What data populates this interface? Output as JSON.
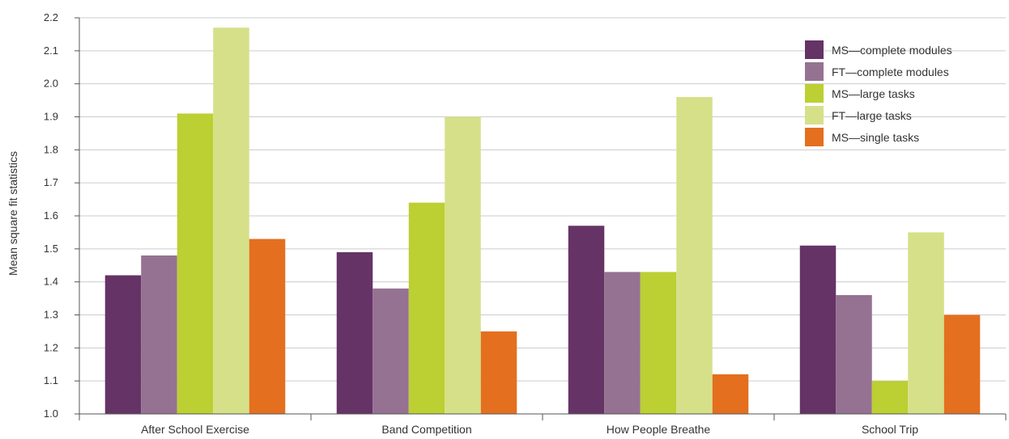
{
  "chart_data": {
    "type": "bar",
    "ylabel": "Mean square fit statistics",
    "xlabel": "",
    "ylim": [
      1.0,
      2.2
    ],
    "yticks": [
      "1.0",
      "1.1",
      "1.2",
      "1.3",
      "1.4",
      "1.5",
      "1.6",
      "1.7",
      "1.8",
      "1.9",
      "2.0",
      "2.1",
      "2.2"
    ],
    "grid": true,
    "legend_position": "top-right",
    "categories": [
      "After School Exercise",
      "Band Competition",
      "How People Breathe",
      "School Trip"
    ],
    "series": [
      {
        "name": "MS—complete modules",
        "color": "#663366",
        "values": [
          1.42,
          1.49,
          1.57,
          1.51
        ]
      },
      {
        "name": "FT—complete modules",
        "color": "#957291",
        "values": [
          1.48,
          1.38,
          1.43,
          1.36
        ]
      },
      {
        "name": "MS—large tasks",
        "color": "#bccf33",
        "values": [
          1.91,
          1.64,
          1.43,
          1.1
        ]
      },
      {
        "name": "FT—large tasks",
        "color": "#d6e088",
        "values": [
          2.17,
          1.9,
          1.96,
          1.55
        ]
      },
      {
        "name": "MS—single tasks",
        "color": "#e46f1f",
        "values": [
          1.53,
          1.25,
          1.12,
          1.3
        ]
      }
    ]
  }
}
